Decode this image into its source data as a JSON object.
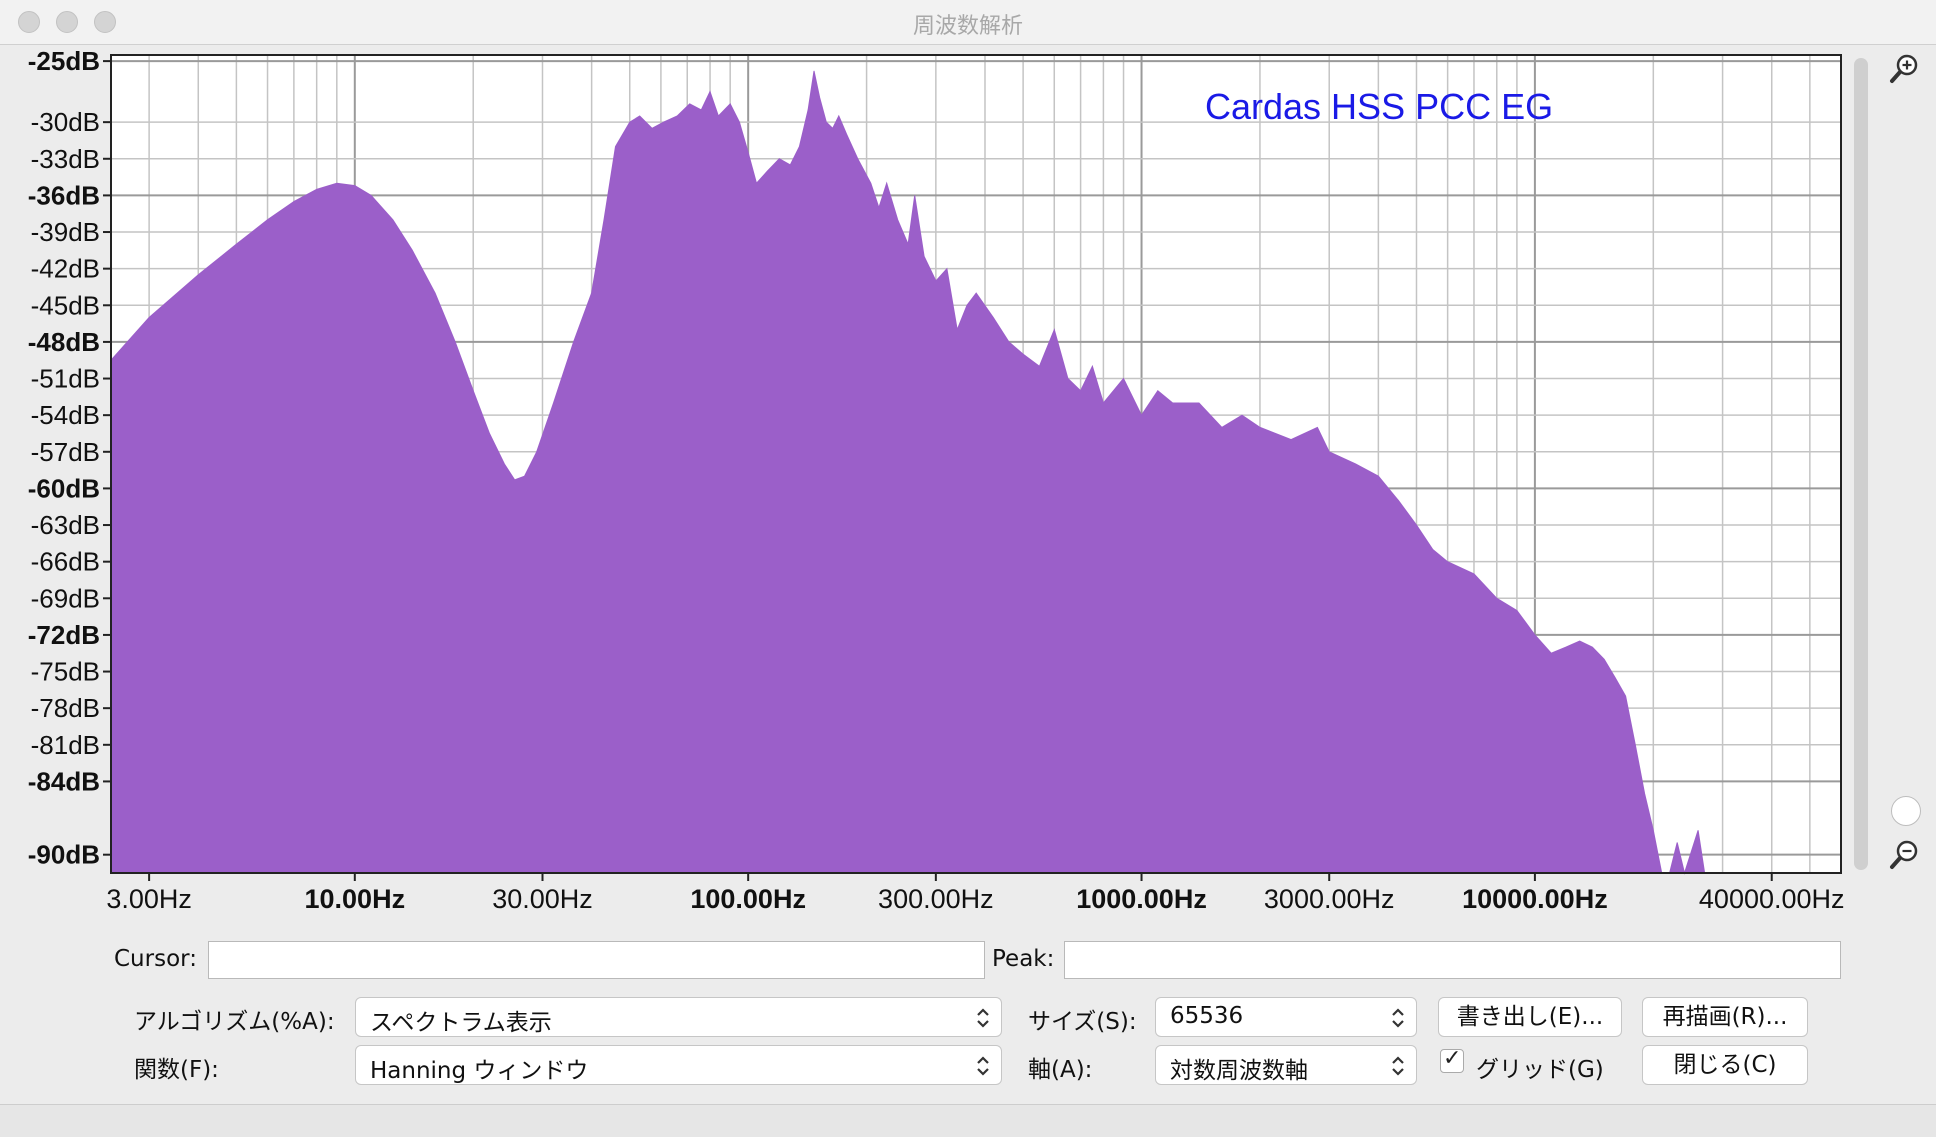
{
  "window": {
    "title": "周波数解析"
  },
  "plot": {
    "annotation": "Cardas HSS PCC EG",
    "fill_color": "#9b5fc9",
    "annotation_color": "#1a1ae6"
  },
  "chart_data": {
    "type": "area",
    "x_scale": "log",
    "xlim": [
      2.4,
      60000
    ],
    "ylim": [
      -91.5,
      -24.5
    ],
    "yticks": [
      {
        "value": -25,
        "label": "-25dB",
        "bold": true
      },
      {
        "value": -30,
        "label": "-30dB",
        "bold": false
      },
      {
        "value": -33,
        "label": "-33dB",
        "bold": false
      },
      {
        "value": -36,
        "label": "-36dB",
        "bold": true
      },
      {
        "value": -39,
        "label": "-39dB",
        "bold": false
      },
      {
        "value": -42,
        "label": "-42dB",
        "bold": false
      },
      {
        "value": -45,
        "label": "-45dB",
        "bold": false
      },
      {
        "value": -48,
        "label": "-48dB",
        "bold": true
      },
      {
        "value": -51,
        "label": "-51dB",
        "bold": false
      },
      {
        "value": -54,
        "label": "-54dB",
        "bold": false
      },
      {
        "value": -57,
        "label": "-57dB",
        "bold": false
      },
      {
        "value": -60,
        "label": "-60dB",
        "bold": true
      },
      {
        "value": -63,
        "label": "-63dB",
        "bold": false
      },
      {
        "value": -66,
        "label": "-66dB",
        "bold": false
      },
      {
        "value": -69,
        "label": "-69dB",
        "bold": false
      },
      {
        "value": -72,
        "label": "-72dB",
        "bold": true
      },
      {
        "value": -75,
        "label": "-75dB",
        "bold": false
      },
      {
        "value": -78,
        "label": "-78dB",
        "bold": false
      },
      {
        "value": -81,
        "label": "-81dB",
        "bold": false
      },
      {
        "value": -84,
        "label": "-84dB",
        "bold": true
      },
      {
        "value": -90,
        "label": "-90dB",
        "bold": true
      }
    ],
    "xticks": [
      {
        "value": 3,
        "label": "3.00Hz",
        "bold": false
      },
      {
        "value": 10,
        "label": "10.00Hz",
        "bold": true
      },
      {
        "value": 30,
        "label": "30.00Hz",
        "bold": false
      },
      {
        "value": 100,
        "label": "100.00Hz",
        "bold": true
      },
      {
        "value": 300,
        "label": "300.00Hz",
        "bold": false
      },
      {
        "value": 1000,
        "label": "1000.00Hz",
        "bold": true
      },
      {
        "value": 3000,
        "label": "3000.00Hz",
        "bold": false
      },
      {
        "value": 10000,
        "label": "10000.00Hz",
        "bold": true
      },
      {
        "value": 40000,
        "label": "40000.00Hz",
        "bold": false
      }
    ],
    "grid": true,
    "series": [
      {
        "points": [
          [
            2.4,
            -49.5
          ],
          [
            3.0,
            -46
          ],
          [
            4.0,
            -42.5
          ],
          [
            5.0,
            -40
          ],
          [
            6.0,
            -38
          ],
          [
            7.0,
            -36.5
          ],
          [
            8.0,
            -35.5
          ],
          [
            9.0,
            -35
          ],
          [
            10.0,
            -35.2
          ],
          [
            11.0,
            -36
          ],
          [
            12.5,
            -38
          ],
          [
            14.0,
            -40.5
          ],
          [
            16.0,
            -44
          ],
          [
            18.0,
            -48
          ],
          [
            20.0,
            -52
          ],
          [
            22.0,
            -55.5
          ],
          [
            24.0,
            -58
          ],
          [
            25.5,
            -59.3
          ],
          [
            27.0,
            -59
          ],
          [
            29.0,
            -57
          ],
          [
            32.0,
            -53
          ],
          [
            36.0,
            -48
          ],
          [
            40.0,
            -44
          ],
          [
            43.0,
            -38
          ],
          [
            46.0,
            -32
          ],
          [
            50.0,
            -30
          ],
          [
            53.0,
            -29.5
          ],
          [
            57.0,
            -30.5
          ],
          [
            61.0,
            -30
          ],
          [
            66.0,
            -29.5
          ],
          [
            71.0,
            -28.5
          ],
          [
            76.0,
            -29
          ],
          [
            80.0,
            -27.5
          ],
          [
            84.0,
            -29.5
          ],
          [
            90.0,
            -28.5
          ],
          [
            95.0,
            -30
          ],
          [
            100.0,
            -32.5
          ],
          [
            105.0,
            -35
          ],
          [
            112.0,
            -34
          ],
          [
            120.0,
            -33
          ],
          [
            128.0,
            -33.5
          ],
          [
            135.0,
            -32
          ],
          [
            142.0,
            -29
          ],
          [
            147.0,
            -25.8
          ],
          [
            152.0,
            -28
          ],
          [
            158.0,
            -30
          ],
          [
            164.0,
            -30.5
          ],
          [
            170.0,
            -29.5
          ],
          [
            178.0,
            -31
          ],
          [
            190.0,
            -33
          ],
          [
            205.0,
            -35
          ],
          [
            215.0,
            -37
          ],
          [
            225.0,
            -35
          ],
          [
            240.0,
            -38
          ],
          [
            255.0,
            -40
          ],
          [
            265.0,
            -36
          ],
          [
            280.0,
            -41
          ],
          [
            300.0,
            -43
          ],
          [
            320.0,
            -42
          ],
          [
            340.0,
            -47
          ],
          [
            360.0,
            -45
          ],
          [
            380.0,
            -44
          ],
          [
            420.0,
            -46
          ],
          [
            460.0,
            -48
          ],
          [
            500.0,
            -49
          ],
          [
            550.0,
            -50
          ],
          [
            600.0,
            -47
          ],
          [
            650.0,
            -51
          ],
          [
            700.0,
            -52
          ],
          [
            750.0,
            -50
          ],
          [
            800.0,
            -53
          ],
          [
            900.0,
            -51
          ],
          [
            1000.0,
            -54
          ],
          [
            1100.0,
            -52
          ],
          [
            1200.0,
            -53
          ],
          [
            1400.0,
            -53
          ],
          [
            1600.0,
            -55
          ],
          [
            1800.0,
            -54
          ],
          [
            2000.0,
            -55
          ],
          [
            2400.0,
            -56
          ],
          [
            2800.0,
            -55
          ],
          [
            3000.0,
            -57
          ],
          [
            3500.0,
            -58
          ],
          [
            4000.0,
            -59
          ],
          [
            4500.0,
            -61
          ],
          [
            5000.0,
            -63
          ],
          [
            5500.0,
            -65
          ],
          [
            6000.0,
            -66
          ],
          [
            7000.0,
            -67
          ],
          [
            8000.0,
            -69
          ],
          [
            9000.0,
            -70
          ],
          [
            10000.0,
            -72
          ],
          [
            11000.0,
            -73.5
          ],
          [
            12000.0,
            -73
          ],
          [
            13000.0,
            -72.5
          ],
          [
            14000.0,
            -73
          ],
          [
            15000.0,
            -74
          ],
          [
            16000.0,
            -75.5
          ],
          [
            17000.0,
            -77
          ],
          [
            18000.0,
            -81
          ],
          [
            19000.0,
            -85
          ],
          [
            20000.0,
            -88
          ],
          [
            21000.0,
            -91.5
          ],
          [
            22000.0,
            -91.5
          ],
          [
            23000.0,
            -89
          ],
          [
            24000.0,
            -91.5
          ],
          [
            26000.0,
            -88
          ],
          [
            27000.0,
            -91.5
          ],
          [
            60000.0,
            -91.5
          ]
        ]
      }
    ]
  },
  "controls": {
    "cursor_label": "Cursor:",
    "cursor_value": "",
    "peak_label": "Peak:",
    "peak_value": "",
    "algorithm_label": "アルゴリズム(%A):",
    "algorithm_value": "スペクトラム表示",
    "function_label": "関数(F):",
    "function_value": "Hanning ウィンドウ",
    "size_label": "サイズ(S):",
    "size_value": "65536",
    "axis_label": "軸(A):",
    "axis_value": "対数周波数軸",
    "export_button": "書き出し(E)...",
    "replot_button": "再描画(R)...",
    "grid_checkbox_label": "グリッド(G)",
    "grid_checked": true,
    "grid_check_mark": "✓",
    "close_button": "閉じる(C)"
  }
}
